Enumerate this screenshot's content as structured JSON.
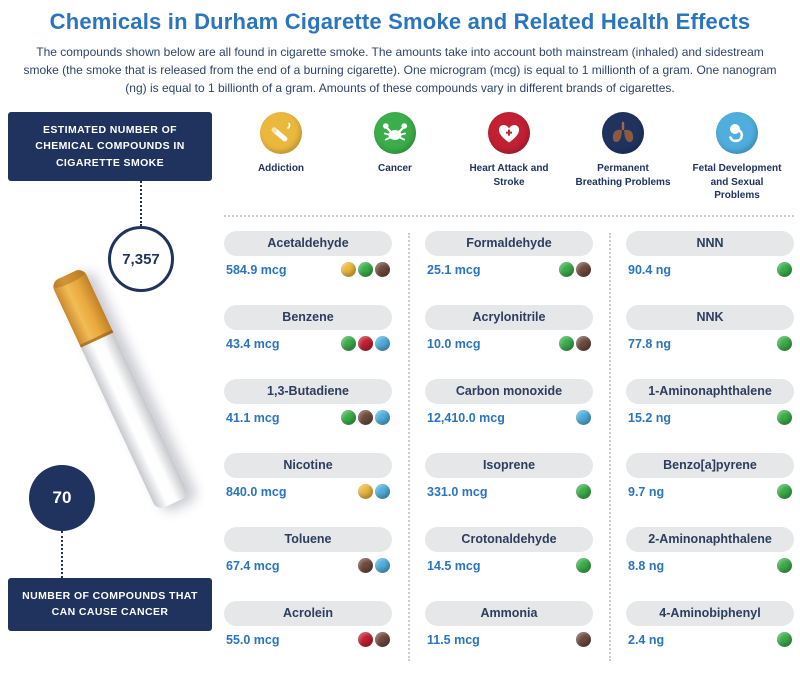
{
  "title": "Chemicals in Durham Cigarette Smoke and Related Health Effects",
  "intro": "The compounds shown below are all found in cigarette smoke. The amounts take into account both mainstream (inhaled) and sidestream smoke (the smoke that is released from the end of a burning cigarette). One microgram (mcg) is equal to 1 millionth of a gram. One nanogram (ng) is equal to 1 billionth of a gram. Amounts of these compounds vary in different brands of cigarettes.",
  "sidebar": {
    "top_label": "Estimated number of chemical compounds in cigarette smoke",
    "estimated_total": "7,357",
    "cancer_count": "70",
    "bottom_label": "Number of compounds that can cause cancer"
  },
  "legend": [
    {
      "key": "addiction",
      "label": "Addiction",
      "color": "#EBB83E",
      "icon": "cigarette-icon"
    },
    {
      "key": "cancer",
      "label": "Cancer",
      "color": "#3BAD4A",
      "icon": "crab-icon"
    },
    {
      "key": "heart",
      "label": "Heart Attack and Stroke",
      "color": "#C22033",
      "icon": "heart-icon"
    },
    {
      "key": "breathing",
      "label": "Permanent Breathing Problems",
      "color": "#20335F",
      "icon": "lungs-icon"
    },
    {
      "key": "fetal",
      "label": "Fetal Development and Sexual Problems",
      "color": "#4FAEDD",
      "icon": "fetus-icon"
    }
  ],
  "effect_dot_colors": {
    "addiction": "#EBB83E",
    "cancer": "#3BAD4A",
    "heart": "#C22033",
    "breathing": "#6F4B3E",
    "fetal": "#4FAEDD"
  },
  "columns": [
    {
      "chemicals": [
        {
          "name": "Acetaldehyde",
          "amount": "584.9 mcg",
          "effects": [
            "addiction",
            "cancer",
            "breathing"
          ]
        },
        {
          "name": "Benzene",
          "amount": "43.4 mcg",
          "effects": [
            "cancer",
            "heart",
            "fetal"
          ]
        },
        {
          "name": "1,3-Butadiene",
          "amount": "41.1 mcg",
          "effects": [
            "cancer",
            "breathing",
            "fetal"
          ]
        },
        {
          "name": "Nicotine",
          "amount": "840.0 mcg",
          "effects": [
            "addiction",
            "fetal"
          ]
        },
        {
          "name": "Toluene",
          "amount": "67.4 mcg",
          "effects": [
            "breathing",
            "fetal"
          ]
        },
        {
          "name": "Acrolein",
          "amount": "55.0 mcg",
          "effects": [
            "heart",
            "breathing"
          ]
        }
      ]
    },
    {
      "chemicals": [
        {
          "name": "Formaldehyde",
          "amount": "25.1 mcg",
          "effects": [
            "cancer",
            "breathing"
          ]
        },
        {
          "name": "Acrylonitrile",
          "amount": "10.0 mcg",
          "effects": [
            "cancer",
            "breathing"
          ]
        },
        {
          "name": "Carbon monoxide",
          "amount": "12,410.0 mcg",
          "effects": [
            "fetal"
          ]
        },
        {
          "name": "Isoprene",
          "amount": "331.0 mcg",
          "effects": [
            "cancer"
          ]
        },
        {
          "name": "Crotonaldehyde",
          "amount": "14.5 mcg",
          "effects": [
            "cancer"
          ]
        },
        {
          "name": "Ammonia",
          "amount": "11.5 mcg",
          "effects": [
            "breathing"
          ]
        }
      ]
    },
    {
      "chemicals": [
        {
          "name": "NNN",
          "amount": "90.4 ng",
          "effects": [
            "cancer"
          ]
        },
        {
          "name": "NNK",
          "amount": "77.8 ng",
          "effects": [
            "cancer"
          ]
        },
        {
          "name": "1-Aminonaphthalene",
          "amount": "15.2 ng",
          "effects": [
            "cancer"
          ]
        },
        {
          "name": "Benzo[a]pyrene",
          "amount": "9.7 ng",
          "effects": [
            "cancer"
          ]
        },
        {
          "name": "2-Aminonaphthalene",
          "amount": "8.8 ng",
          "effects": [
            "cancer"
          ]
        },
        {
          "name": "4-Aminobiphenyl",
          "amount": "2.4 ng",
          "effects": [
            "cancer"
          ]
        }
      ]
    }
  ],
  "colors": {
    "title_blue": "#2B74BE",
    "navy": "#20335F",
    "amount_blue": "#2B74BE",
    "pill_bg": "#E6E7E8",
    "separator": "#C7CED8"
  }
}
